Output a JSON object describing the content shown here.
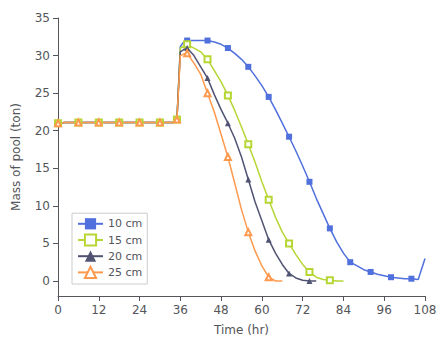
{
  "chart_data": {
    "type": "line",
    "xlabel": "Time (hr)",
    "ylabel": "Mass of pool (ton)",
    "xlim": [
      0,
      108
    ],
    "ylim": [
      -2,
      35
    ],
    "xticks": [
      0,
      12,
      24,
      36,
      48,
      60,
      72,
      84,
      96,
      108
    ],
    "yticks": [
      0,
      5,
      10,
      15,
      20,
      25,
      30,
      35
    ],
    "grid": false,
    "legend": "lower left",
    "series": [
      {
        "name": "10 cm",
        "marker": "square",
        "x": [
          0,
          2,
          4,
          6,
          8,
          10,
          12,
          14,
          16,
          18,
          20,
          22,
          24,
          26,
          28,
          30,
          32,
          34,
          35,
          36,
          37,
          38,
          40,
          42,
          44,
          46,
          48,
          50,
          52,
          54,
          56,
          58,
          60,
          62,
          64,
          66,
          68,
          70,
          72,
          74,
          76,
          78,
          80,
          82,
          84,
          86,
          88,
          90,
          92,
          94,
          96,
          98,
          100,
          102,
          104,
          106,
          108
        ],
        "values": [
          21.0,
          21.1,
          21.1,
          21.1,
          21.1,
          21.1,
          21.1,
          21.1,
          21.1,
          21.1,
          21.1,
          21.1,
          21.1,
          21.1,
          21.1,
          21.1,
          21.1,
          21.1,
          21.5,
          31.2,
          31.8,
          32.0,
          32.0,
          32.0,
          32.0,
          31.8,
          31.5,
          31.0,
          30.3,
          29.5,
          28.5,
          27.3,
          26.0,
          24.5,
          22.8,
          21.0,
          19.2,
          17.3,
          15.3,
          13.2,
          11.0,
          9.0,
          7.0,
          5.2,
          3.7,
          2.5,
          2.0,
          1.5,
          1.2,
          0.9,
          0.7,
          0.5,
          0.4,
          0.3,
          0.3,
          0.2,
          3.0
        ]
      },
      {
        "name": "15 cm",
        "marker": "open_square",
        "x": [
          0,
          2,
          4,
          6,
          8,
          10,
          12,
          14,
          16,
          18,
          20,
          22,
          24,
          26,
          28,
          30,
          32,
          34,
          35,
          36,
          37,
          38,
          40,
          42,
          44,
          46,
          48,
          50,
          52,
          54,
          56,
          58,
          60,
          62,
          64,
          66,
          68,
          70,
          72,
          74,
          76,
          78,
          80,
          82,
          84
        ],
        "values": [
          21.0,
          21.1,
          21.1,
          21.1,
          21.1,
          21.1,
          21.1,
          21.1,
          21.1,
          21.1,
          21.1,
          21.1,
          21.1,
          21.1,
          21.1,
          21.1,
          21.1,
          21.1,
          21.5,
          31.0,
          31.2,
          31.5,
          31.0,
          30.5,
          29.5,
          28.0,
          26.5,
          24.7,
          22.7,
          20.5,
          18.2,
          15.8,
          13.2,
          10.8,
          8.5,
          6.5,
          5.0,
          3.5,
          2.2,
          1.2,
          0.5,
          0.2,
          0.1,
          0.0,
          0.0
        ]
      },
      {
        "name": "20 cm",
        "marker": "triangle",
        "x": [
          0,
          2,
          4,
          6,
          8,
          10,
          12,
          14,
          16,
          18,
          20,
          22,
          24,
          26,
          28,
          30,
          32,
          34,
          35,
          36,
          37,
          38,
          40,
          42,
          44,
          46,
          48,
          50,
          52,
          54,
          56,
          58,
          60,
          62,
          64,
          66,
          68,
          70,
          72,
          74,
          76
        ],
        "values": [
          21.0,
          21.1,
          21.1,
          21.1,
          21.1,
          21.1,
          21.1,
          21.1,
          21.1,
          21.1,
          21.1,
          21.1,
          21.1,
          21.1,
          21.1,
          21.1,
          21.1,
          21.1,
          21.5,
          30.5,
          30.8,
          31.0,
          30.0,
          28.5,
          27.0,
          24.8,
          22.8,
          21.0,
          19.0,
          16.5,
          13.5,
          10.5,
          8.0,
          5.5,
          3.7,
          2.2,
          1.0,
          0.4,
          0.1,
          0.0,
          0.0
        ]
      },
      {
        "name": "25 cm",
        "marker": "open_triangle",
        "x": [
          0,
          2,
          4,
          6,
          8,
          10,
          12,
          14,
          16,
          18,
          20,
          22,
          24,
          26,
          28,
          30,
          32,
          34,
          35,
          36,
          37,
          38,
          40,
          42,
          44,
          46,
          48,
          50,
          52,
          54,
          56,
          58,
          60,
          62,
          64,
          66
        ],
        "values": [
          21.0,
          21.1,
          21.1,
          21.1,
          21.1,
          21.1,
          21.1,
          21.1,
          21.1,
          21.1,
          21.1,
          21.1,
          21.1,
          21.1,
          21.1,
          21.1,
          21.1,
          21.1,
          21.5,
          30.0,
          30.2,
          30.3,
          29.0,
          27.5,
          25.0,
          22.5,
          19.5,
          16.5,
          13.0,
          9.5,
          6.5,
          4.0,
          2.0,
          0.5,
          0.0,
          0.0
        ]
      }
    ]
  }
}
